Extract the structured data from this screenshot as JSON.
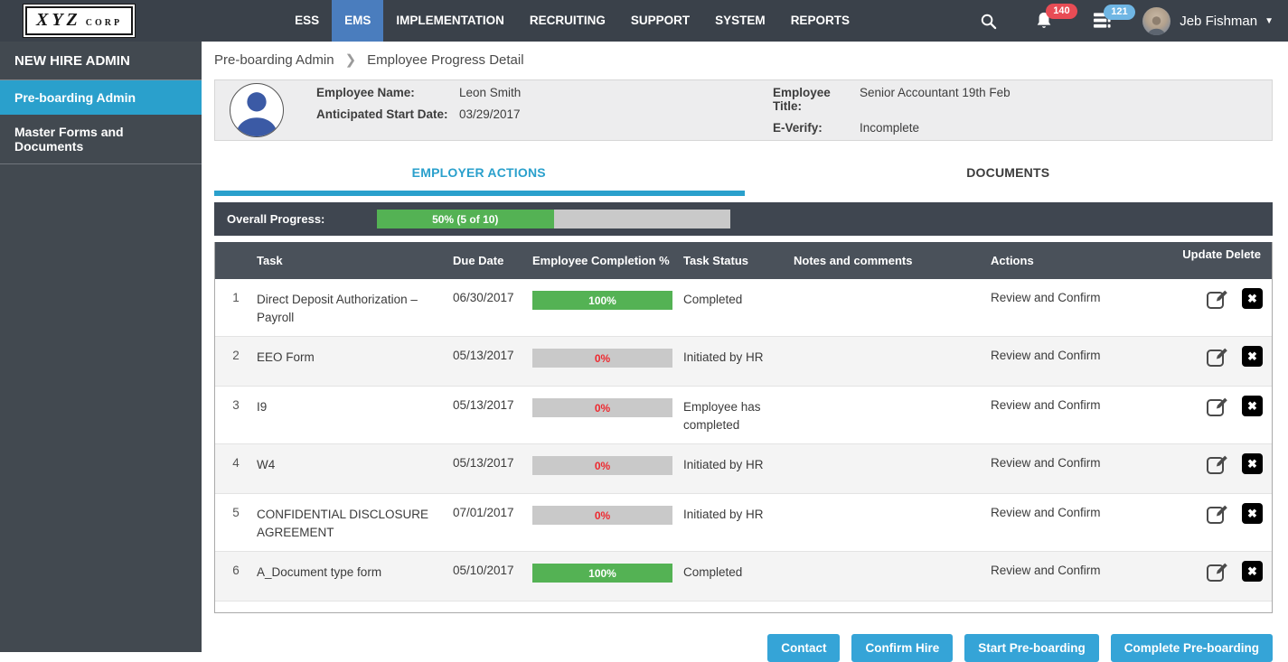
{
  "topbar": {
    "logo": {
      "main": "XYZ",
      "sub": "CORP"
    },
    "nav": [
      {
        "label": "ESS",
        "active": false
      },
      {
        "label": "EMS",
        "active": true
      },
      {
        "label": "IMPLEMENTATION",
        "active": false
      },
      {
        "label": "RECRUITING",
        "active": false
      },
      {
        "label": "SUPPORT",
        "active": false
      },
      {
        "label": "SYSTEM",
        "active": false
      },
      {
        "label": "REPORTS",
        "active": false
      }
    ],
    "notifications": {
      "count": "140"
    },
    "queue": {
      "count": "121"
    },
    "user": {
      "name": "Jeb Fishman"
    }
  },
  "sidebar": {
    "title": "NEW HIRE ADMIN",
    "items": [
      {
        "label": "Pre-boarding Admin",
        "active": true
      },
      {
        "label": "Master Forms and Documents",
        "active": false
      }
    ]
  },
  "breadcrumb": {
    "items": [
      "Pre-boarding Admin",
      "Employee Progress Detail"
    ]
  },
  "employee_card": {
    "fields": [
      {
        "label": "Employee Name:",
        "value": "Leon Smith"
      },
      {
        "label": "Anticipated Start Date:",
        "value": "03/29/2017"
      },
      {
        "label": "Employee Title:",
        "value": "Senior Accountant 19th Feb"
      },
      {
        "label": "E-Verify:",
        "value": "Incomplete"
      }
    ]
  },
  "tabs": [
    {
      "label": "EMPLOYER ACTIONS",
      "active": true
    },
    {
      "label": "DOCUMENTS",
      "active": false
    }
  ],
  "progress": {
    "label": "Overall Progress:",
    "percent": 50,
    "text": "50% (5 of 10)"
  },
  "table": {
    "headers": [
      "Task",
      "Due Date",
      "Employee Completion %",
      "Task Status",
      "Notes and comments",
      "Actions",
      "Update Delete"
    ],
    "rows": [
      {
        "num": "1",
        "task": "Direct Deposit Authorization – Payroll",
        "due": "06/30/2017",
        "completion": 100,
        "completion_label": "100%",
        "status": "Completed",
        "notes": "",
        "action": "Review and Confirm"
      },
      {
        "num": "2",
        "task": "EEO Form",
        "due": "05/13/2017",
        "completion": 0,
        "completion_label": "0%",
        "status": "Initiated by HR",
        "notes": "",
        "action": "Review and Confirm"
      },
      {
        "num": "3",
        "task": "I9",
        "due": "05/13/2017",
        "completion": 0,
        "completion_label": "0%",
        "status": "Employee has completed",
        "notes": "",
        "action": "Review and Confirm"
      },
      {
        "num": "4",
        "task": "W4",
        "due": "05/13/2017",
        "completion": 0,
        "completion_label": "0%",
        "status": "Initiated by HR",
        "notes": "",
        "action": "Review and Confirm"
      },
      {
        "num": "5",
        "task": "CONFIDENTIAL DISCLOSURE AGREEMENT",
        "due": "07/01/2017",
        "completion": 0,
        "completion_label": "0%",
        "status": "Initiated by HR",
        "notes": "",
        "action": "Review and Confirm"
      },
      {
        "num": "6",
        "task": "A_Document type form",
        "due": "05/10/2017",
        "completion": 100,
        "completion_label": "100%",
        "status": "Completed",
        "notes": "",
        "action": "Review and Confirm"
      }
    ]
  },
  "footer": {
    "buttons": [
      "Contact",
      "Confirm Hire",
      "Start Pre-boarding",
      "Complete Pre-boarding"
    ]
  },
  "colors": {
    "dark": "#3a414a",
    "accent_cyan": "#2aa0cc",
    "nav_active_blue": "#4a7dbe",
    "button_cyan": "#35a4d7",
    "green": "#54b254",
    "badge_red": "#e84c55",
    "badge_blue": "#6fb6e4",
    "zero_red": "#ee2a30"
  }
}
